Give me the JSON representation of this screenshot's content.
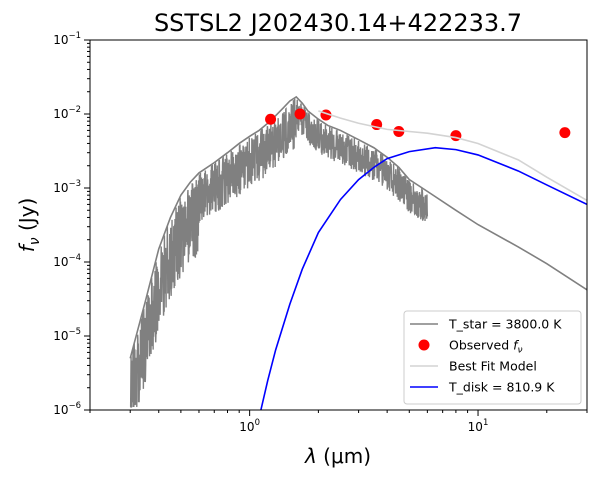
{
  "chart_data": {
    "type": "line",
    "title": "SSTSL2 J202430.14+422233.7",
    "xlabel": "λ (μm)",
    "ylabel": "fν (Jy)",
    "xscale": "log",
    "yscale": "log",
    "xlim": [
      0.2,
      30
    ],
    "ylim": [
      1e-06,
      0.1
    ],
    "x_ticks": [
      {
        "value": 1,
        "label": "10",
        "exp": "0"
      },
      {
        "value": 10,
        "label": "10",
        "exp": "1"
      }
    ],
    "y_ticks": [
      {
        "value": 1e-06,
        "label": "10",
        "exp": "−6"
      },
      {
        "value": 1e-05,
        "label": "10",
        "exp": "−5"
      },
      {
        "value": 0.0001,
        "label": "10",
        "exp": "−4"
      },
      {
        "value": 0.001,
        "label": "10",
        "exp": "−3"
      },
      {
        "value": 0.01,
        "label": "10",
        "exp": "−2"
      },
      {
        "value": 0.1,
        "label": "10",
        "exp": "−1"
      }
    ],
    "legend_position": "lower-right",
    "series": [
      {
        "name": "T_star = 3800.0 K",
        "kind": "line",
        "color": "#808080",
        "x": [
          0.3,
          0.35,
          0.4,
          0.45,
          0.5,
          0.55,
          0.6,
          0.7,
          0.8,
          0.9,
          1.0,
          1.1,
          1.2,
          1.3,
          1.4,
          1.5,
          1.6,
          1.7,
          1.8,
          2.0,
          2.2,
          2.5,
          3.0,
          3.5,
          4.0,
          4.5,
          5.0,
          6.0,
          8.0,
          10.0,
          15.0,
          20.0,
          30.0
        ],
        "y": [
          5e-06,
          3e-05,
          0.00015,
          0.0004,
          0.0008,
          0.0012,
          0.0016,
          0.0022,
          0.003,
          0.004,
          0.005,
          0.006,
          0.0075,
          0.0095,
          0.012,
          0.015,
          0.017,
          0.014,
          0.011,
          0.0085,
          0.007,
          0.006,
          0.0045,
          0.0035,
          0.0026,
          0.0019,
          0.0013,
          0.0009,
          0.0005,
          0.00032,
          0.00016,
          9.5e-05,
          4.2e-05
        ]
      },
      {
        "name": "Observed f_ν",
        "kind": "scatter",
        "color": "#ff0000",
        "x": [
          1.235,
          1.662,
          2.159,
          3.6,
          4.5,
          8.0,
          24.0
        ],
        "y": [
          0.0085,
          0.01,
          0.0097,
          0.0072,
          0.0058,
          0.0051,
          0.0056
        ]
      },
      {
        "name": "Best Fit Model",
        "kind": "line",
        "color": "#d3d3d3",
        "x": [
          2.0,
          2.5,
          3.0,
          4.0,
          5.0,
          6.0,
          8.0,
          10.0,
          15.0,
          20.0,
          30.0
        ],
        "y": [
          0.011,
          0.0088,
          0.0075,
          0.0062,
          0.0058,
          0.0055,
          0.0048,
          0.004,
          0.0024,
          0.0014,
          0.00068
        ]
      },
      {
        "name": "T_disk = 810.9 K",
        "kind": "line",
        "color": "#0000ff",
        "x": [
          1.12,
          1.2,
          1.3,
          1.5,
          1.7,
          2.0,
          2.5,
          3.0,
          3.5,
          4.0,
          5.0,
          6.5,
          8.0,
          10.0,
          15.0,
          20.0,
          30.0
        ],
        "y": [
          1e-06,
          2.5e-06,
          6.5e-06,
          2.7e-05,
          8e-05,
          0.00025,
          0.0007,
          0.0013,
          0.0019,
          0.0025,
          0.0031,
          0.0035,
          0.0033,
          0.0028,
          0.0017,
          0.0011,
          0.0006
        ]
      }
    ]
  }
}
